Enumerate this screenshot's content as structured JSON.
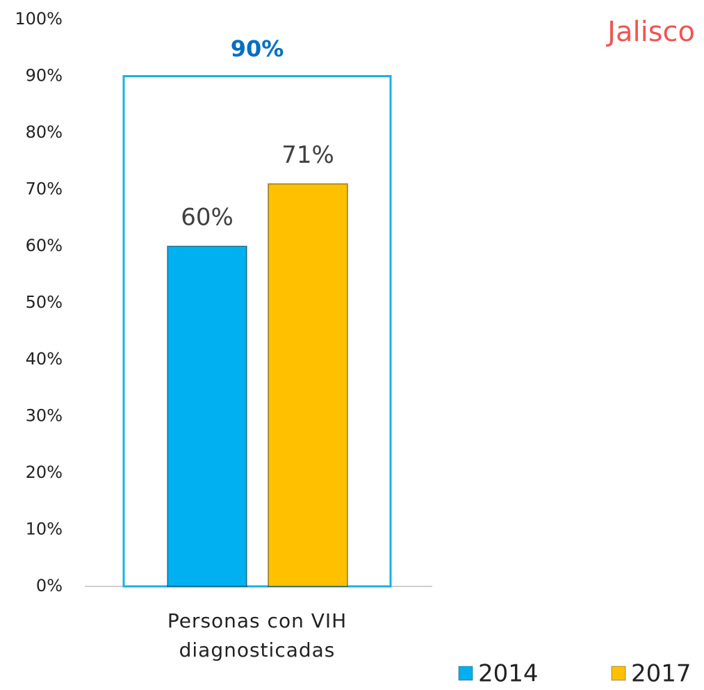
{
  "chart_data": {
    "type": "bar",
    "title": "Jalisco",
    "categories": [
      "Personas con VIH diagnosticadas"
    ],
    "series": [
      {
        "name": "2014",
        "color": "#00b0f0",
        "values": [
          60
        ],
        "value_labels": [
          "60%"
        ]
      },
      {
        "name": "2017",
        "color": "#ffc000",
        "values": [
          71
        ],
        "value_labels": [
          "71%"
        ]
      }
    ],
    "target": {
      "value": 90,
      "label": "90%",
      "color": "#1ab0e6",
      "label_color": "#0070c0"
    },
    "ylim": [
      0,
      100
    ],
    "yticks": [
      {
        "value": 0,
        "label": "0%"
      },
      {
        "value": 10,
        "label": "10%"
      },
      {
        "value": 20,
        "label": "20%"
      },
      {
        "value": 30,
        "label": "30%"
      },
      {
        "value": 40,
        "label": "40%"
      },
      {
        "value": 50,
        "label": "50%"
      },
      {
        "value": 60,
        "label": "60%"
      },
      {
        "value": 70,
        "label": "70%"
      },
      {
        "value": 80,
        "label": "80%"
      },
      {
        "value": 90,
        "label": "90%"
      },
      {
        "value": 100,
        "label": "100%"
      }
    ],
    "grid": false,
    "legend": "bottom-right"
  }
}
